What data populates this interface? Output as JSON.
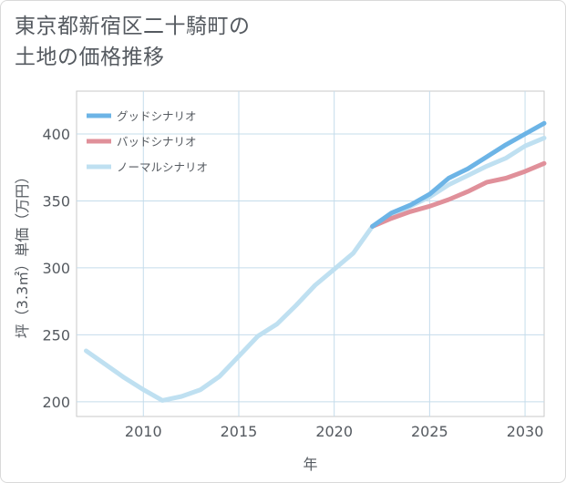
{
  "chart_data": {
    "type": "line",
    "title_lines": [
      "東京都新宿区二十騎町の",
      "土地の価格推移"
    ],
    "xlabel": "年",
    "ylabel": "坪（3.3㎡）単価（万円）",
    "xlim": [
      2006.5,
      2031
    ],
    "ylim": [
      189,
      432
    ],
    "x_ticks": [
      2010,
      2015,
      2020,
      2025,
      2030
    ],
    "y_ticks": [
      200,
      250,
      300,
      350,
      400
    ],
    "grid": true,
    "legend_position": "top-left",
    "series": [
      {
        "name": "グッドシナリオ",
        "color": "#6cb4e6",
        "x": [
          2022,
          2023,
          2024,
          2025,
          2026,
          2027,
          2028,
          2029,
          2030,
          2031
        ],
        "y": [
          331,
          341,
          347,
          355,
          367,
          374,
          383,
          392,
          400,
          408
        ]
      },
      {
        "name": "バッドシナリオ",
        "color": "#e0909a",
        "x": [
          2022,
          2023,
          2024,
          2025,
          2026,
          2027,
          2028,
          2029,
          2030,
          2031
        ],
        "y": [
          331,
          337,
          342,
          346,
          351,
          357,
          364,
          367,
          372,
          378
        ]
      },
      {
        "name": "ノーマルシナリオ",
        "color": "#bfe0f1",
        "x": [
          2007,
          2008,
          2009,
          2010,
          2011,
          2012,
          2013,
          2014,
          2015,
          2016,
          2017,
          2018,
          2019,
          2020,
          2021,
          2022,
          2023,
          2024,
          2025,
          2026,
          2027,
          2028,
          2029,
          2030,
          2031
        ],
        "y": [
          238,
          228,
          218,
          209,
          201,
          204,
          209,
          219,
          234,
          249,
          258,
          272,
          287,
          299,
          311,
          331,
          338,
          346,
          353,
          362,
          369,
          376,
          382,
          391,
          397
        ]
      }
    ]
  }
}
